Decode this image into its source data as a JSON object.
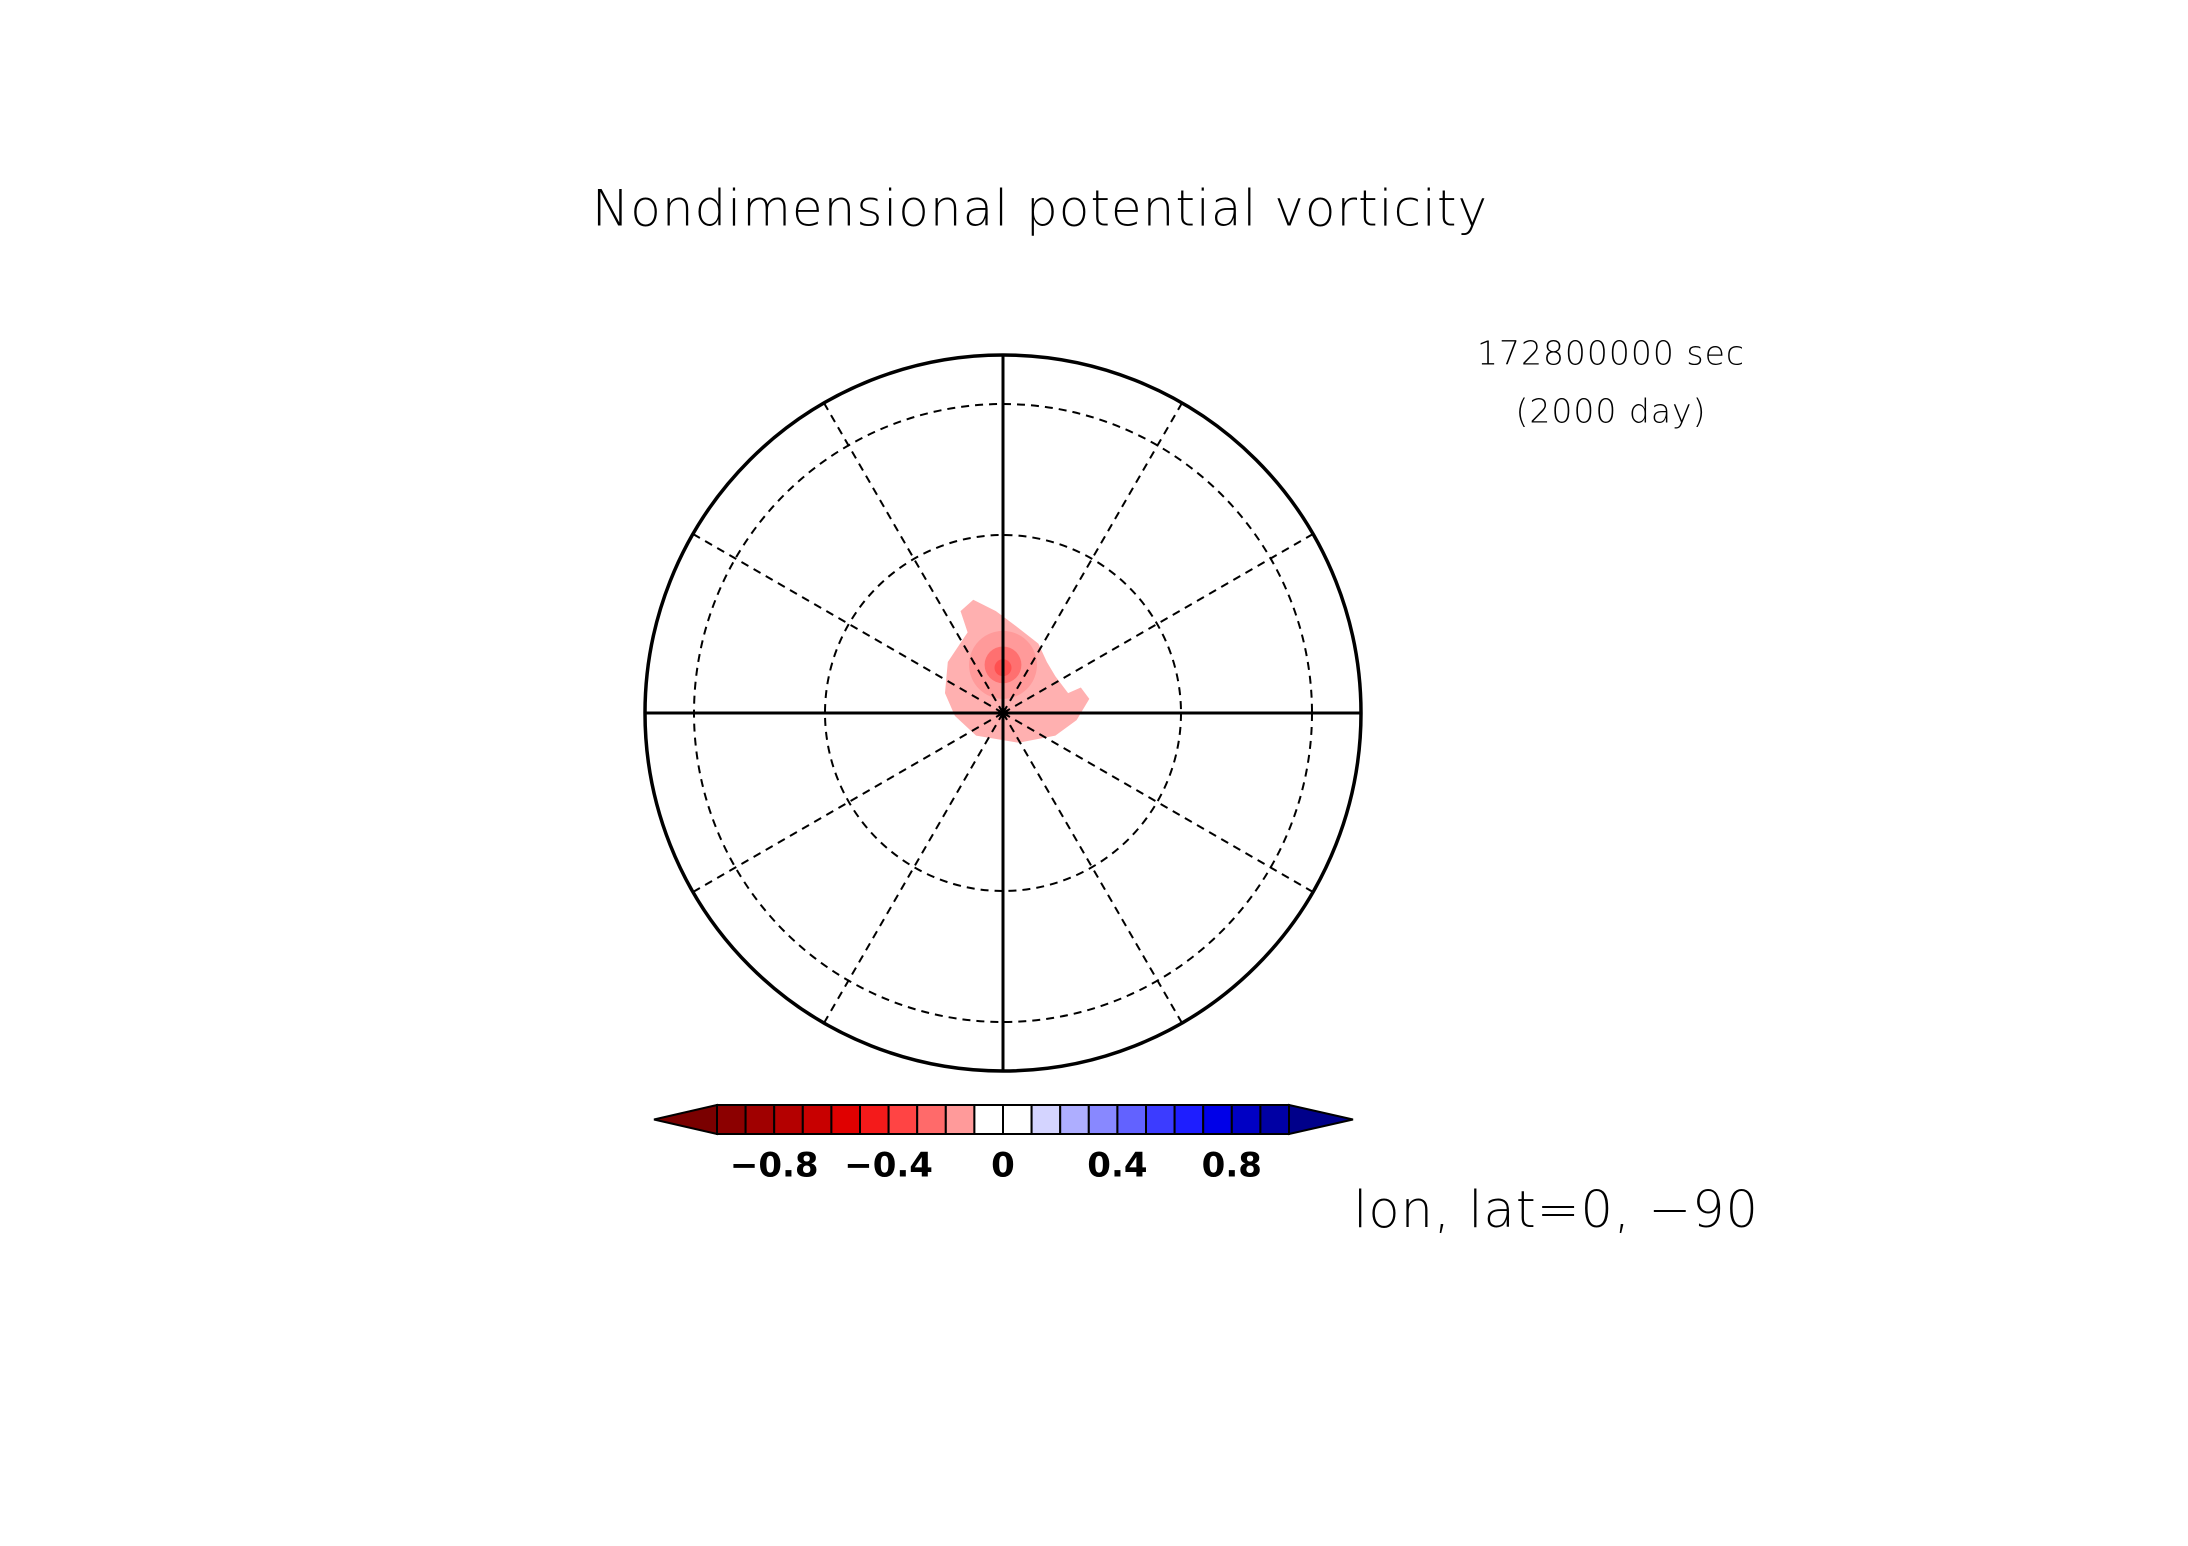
{
  "chart_data": {
    "type": "contour",
    "title": "Nondimensional potential vorticity",
    "time_label": "172800000 sec",
    "day_label": "(2000 day)",
    "projection_label": "lon, lat=0, −90",
    "levels": [
      -1.0,
      -0.9,
      -0.8,
      -0.7,
      -0.6,
      -0.5,
      -0.4,
      -0.3,
      -0.2,
      -0.1,
      0,
      0.1,
      0.2,
      0.3,
      0.4,
      0.5,
      0.6,
      0.7,
      0.8,
      0.9,
      1.0
    ],
    "colors": [
      "#7a0000",
      "#8c0000",
      "#a00000",
      "#b40000",
      "#c80000",
      "#e00000",
      "#f41a1a",
      "#ff4444",
      "#ff6a6a",
      "#ff9a9a",
      "#ffffff",
      "#ffffff",
      "#d4d4ff",
      "#aeaeff",
      "#8888ff",
      "#6262ff",
      "#3c3cff",
      "#1e1eff",
      "#0000e8",
      "#0000c4",
      "#0000a4",
      "#00008a"
    ],
    "colorbar_ticks": [
      {
        "value": -0.8,
        "label": "−0.8"
      },
      {
        "value": -0.4,
        "label": "−0.4"
      },
      0,
      0.4,
      0.8
    ]
  }
}
